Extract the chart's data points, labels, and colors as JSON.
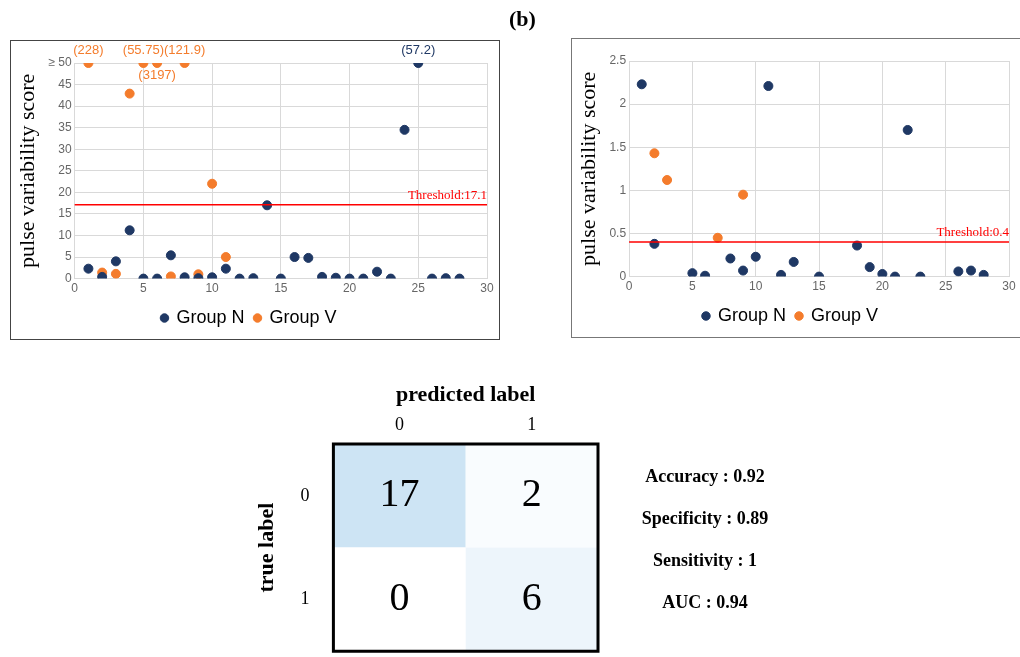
{
  "chart_data": [
    {
      "type": "scatter",
      "ylabel": "pulse variability score",
      "xlim": [
        0,
        30
      ],
      "xticks": [
        0,
        5,
        10,
        15,
        20,
        25,
        30
      ],
      "ylim": [
        0,
        50
      ],
      "yticks": [
        0,
        5,
        10,
        15,
        20,
        25,
        30,
        35,
        40,
        45,
        {
          "value": 50,
          "label": "≥ 50"
        }
      ],
      "grid": true,
      "legend": "bottom",
      "marker": "circle",
      "series": [
        {
          "name": "Group N",
          "color": "#1f3864",
          "x": [
            1,
            2,
            3,
            4,
            5,
            6,
            7,
            8,
            9,
            10,
            11,
            12,
            13,
            14,
            15,
            16,
            17,
            18,
            19,
            20,
            21,
            22,
            23,
            24,
            25,
            26,
            27,
            28
          ],
          "values": [
            2.3,
            0.4,
            4,
            11.2,
            0,
            0,
            5.4,
            0.3,
            0.1,
            0.3,
            2.3,
            0,
            0.1,
            17,
            0,
            5,
            4.8,
            0.4,
            0.2,
            0,
            0,
            1.6,
            0,
            34.5,
            50,
            0,
            0.1,
            0
          ]
        },
        {
          "name": "Group V",
          "color": "#f47c2c",
          "x": [
            1,
            2,
            3,
            4,
            5,
            6,
            7,
            8,
            9,
            10,
            11
          ],
          "values": [
            50,
            1.4,
            1.1,
            42.9,
            50,
            50,
            0.5,
            50,
            1,
            22,
            5
          ]
        }
      ],
      "ref_lines": [
        {
          "axis": "y",
          "value": 17.1,
          "label": "Threshold:17.1",
          "color": "#ff0000"
        }
      ],
      "annotations": [
        {
          "text": "(228)",
          "x": 1,
          "y": 50
        },
        {
          "text": "(55.75)",
          "x": 5,
          "y": 50
        },
        {
          "text": "(3197)",
          "x": 6,
          "y": 50
        },
        {
          "text": "(121.9)",
          "x": 8,
          "y": 50
        },
        {
          "text": "(57.2)",
          "x": 25,
          "y": 50
        }
      ]
    },
    {
      "type": "scatter",
      "title": "(b)",
      "ylabel": "pulse variability score",
      "xlim": [
        0,
        30
      ],
      "xticks": [
        0,
        5,
        10,
        15,
        20,
        25,
        30
      ],
      "ylim": [
        0,
        2.5
      ],
      "yticks": [
        0,
        0.5,
        1,
        1.5,
        2,
        2.5
      ],
      "grid": true,
      "legend": "bottom",
      "marker": "circle",
      "series": [
        {
          "name": "Group N",
          "color": "#1f3864",
          "x": [
            1,
            2,
            5,
            6,
            8,
            9,
            10,
            11,
            12,
            13,
            15,
            18,
            19,
            20,
            21,
            22,
            23,
            26,
            27,
            28
          ],
          "values": [
            2.23,
            0.38,
            0.04,
            0.01,
            0.21,
            0.07,
            0.23,
            2.21,
            0.02,
            0.17,
            0,
            0.36,
            0.11,
            0.03,
            0,
            1.7,
            0,
            0.06,
            0.07,
            0.02
          ]
        },
        {
          "name": "Group V",
          "color": "#f47c2c",
          "x": [
            2,
            3,
            7,
            9
          ],
          "values": [
            1.43,
            1.12,
            0.45,
            0.95
          ]
        }
      ],
      "ref_lines": [
        {
          "axis": "y",
          "value": 0.4,
          "label": "Threshold:0.4",
          "color": "#ff0000"
        }
      ]
    },
    {
      "type": "heatmap",
      "xlabel": "predicted label",
      "ylabel": "true label",
      "categories": [
        "0",
        "1"
      ],
      "y_categories": [
        "0",
        "1"
      ],
      "cells": [
        [
          17,
          2
        ],
        [
          0,
          6
        ]
      ],
      "data_labels": true,
      "annotations": [
        "Accuracy : 0.92",
        "Specificity : 0.89",
        "Sensitivity : 1",
        "AUC : 0.94"
      ]
    }
  ]
}
